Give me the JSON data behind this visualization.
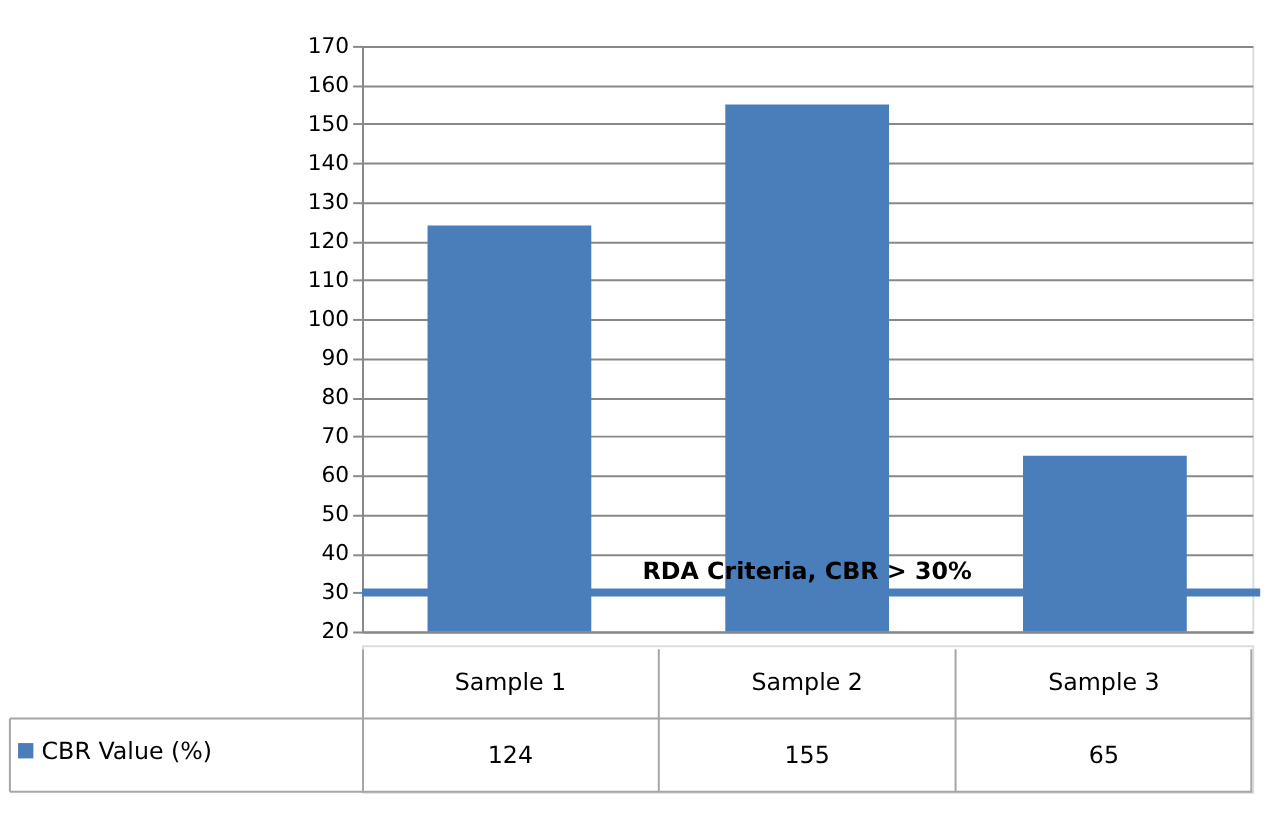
{
  "chart_data": {
    "type": "bar",
    "categories": [
      "Sample 1",
      "Sample 2",
      "Sample 3"
    ],
    "series": [
      {
        "name": "CBR Value (%)",
        "color": "#4a7ebb",
        "values": [
          124,
          155,
          65
        ]
      }
    ],
    "ylim": [
      20,
      170
    ],
    "yticks": [
      20,
      30,
      40,
      50,
      60,
      70,
      80,
      90,
      100,
      110,
      120,
      130,
      140,
      150,
      160,
      170
    ],
    "grid": "y",
    "data_labels": true,
    "legend": "bottom left",
    "ref_lines": [
      {
        "axis": "y",
        "value": 30,
        "label": "RDA Criteria, CBR > 30%",
        "color": "#4a7ebb"
      }
    ]
  }
}
